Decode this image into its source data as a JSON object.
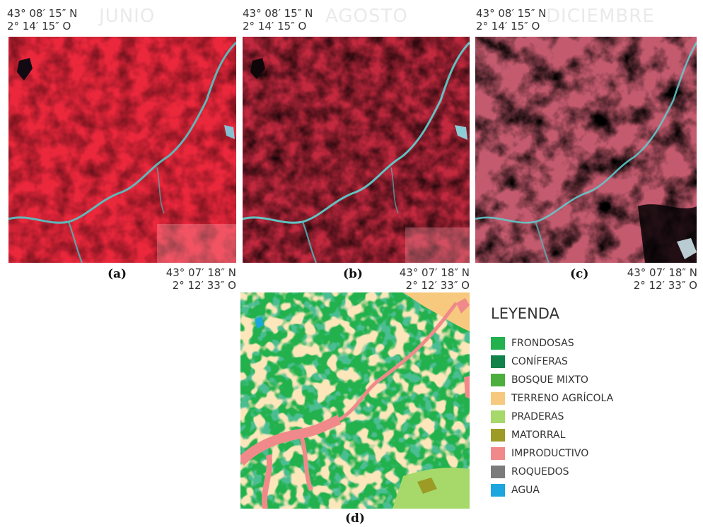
{
  "panels": [
    {
      "id": "a",
      "month": "JUNIO",
      "top_lat": "43° 08′ 15″ N",
      "top_lon": "2° 14′ 15″ O",
      "bottom_lat": "43° 07′ 18″ N",
      "bottom_lon": "2° 12′ 33″ O",
      "label": "(a)"
    },
    {
      "id": "b",
      "month": "AGOSTO",
      "top_lat": "43° 08′ 15″ N",
      "top_lon": "2° 14′ 15″ O",
      "bottom_lat": "43° 07′ 18″ N",
      "bottom_lon": "2° 12′ 33″ O",
      "label": "(b)"
    },
    {
      "id": "c",
      "month": "DICIEMBRE",
      "top_lat": "43° 08′ 15″ N",
      "top_lon": "2° 14′ 15″ O",
      "bottom_lat": "43° 07′ 18″ N",
      "bottom_lon": "2° 12′ 33″ O",
      "label": "(c)"
    }
  ],
  "map_label": "(d)",
  "legend": {
    "title": "LEYENDA",
    "items": [
      {
        "label": "FRONDOSAS",
        "color": "#22b14c"
      },
      {
        "label": "CONÍFERAS",
        "color": "#11834a"
      },
      {
        "label": "BOSQUE MIXTO",
        "color": "#4cae3c"
      },
      {
        "label": "TERRENO AGRÍCOLA",
        "color": "#f7c97e"
      },
      {
        "label": "PRADERAS",
        "color": "#a6d96a"
      },
      {
        "label": "MATORRAL",
        "color": "#9c9b26"
      },
      {
        "label": "IMPRODUCTIVO",
        "color": "#f08a8a"
      },
      {
        "label": "ROQUEDOS",
        "color": "#7b7b7b"
      },
      {
        "label": "AGUA",
        "color": "#1ba6e0"
      }
    ]
  }
}
